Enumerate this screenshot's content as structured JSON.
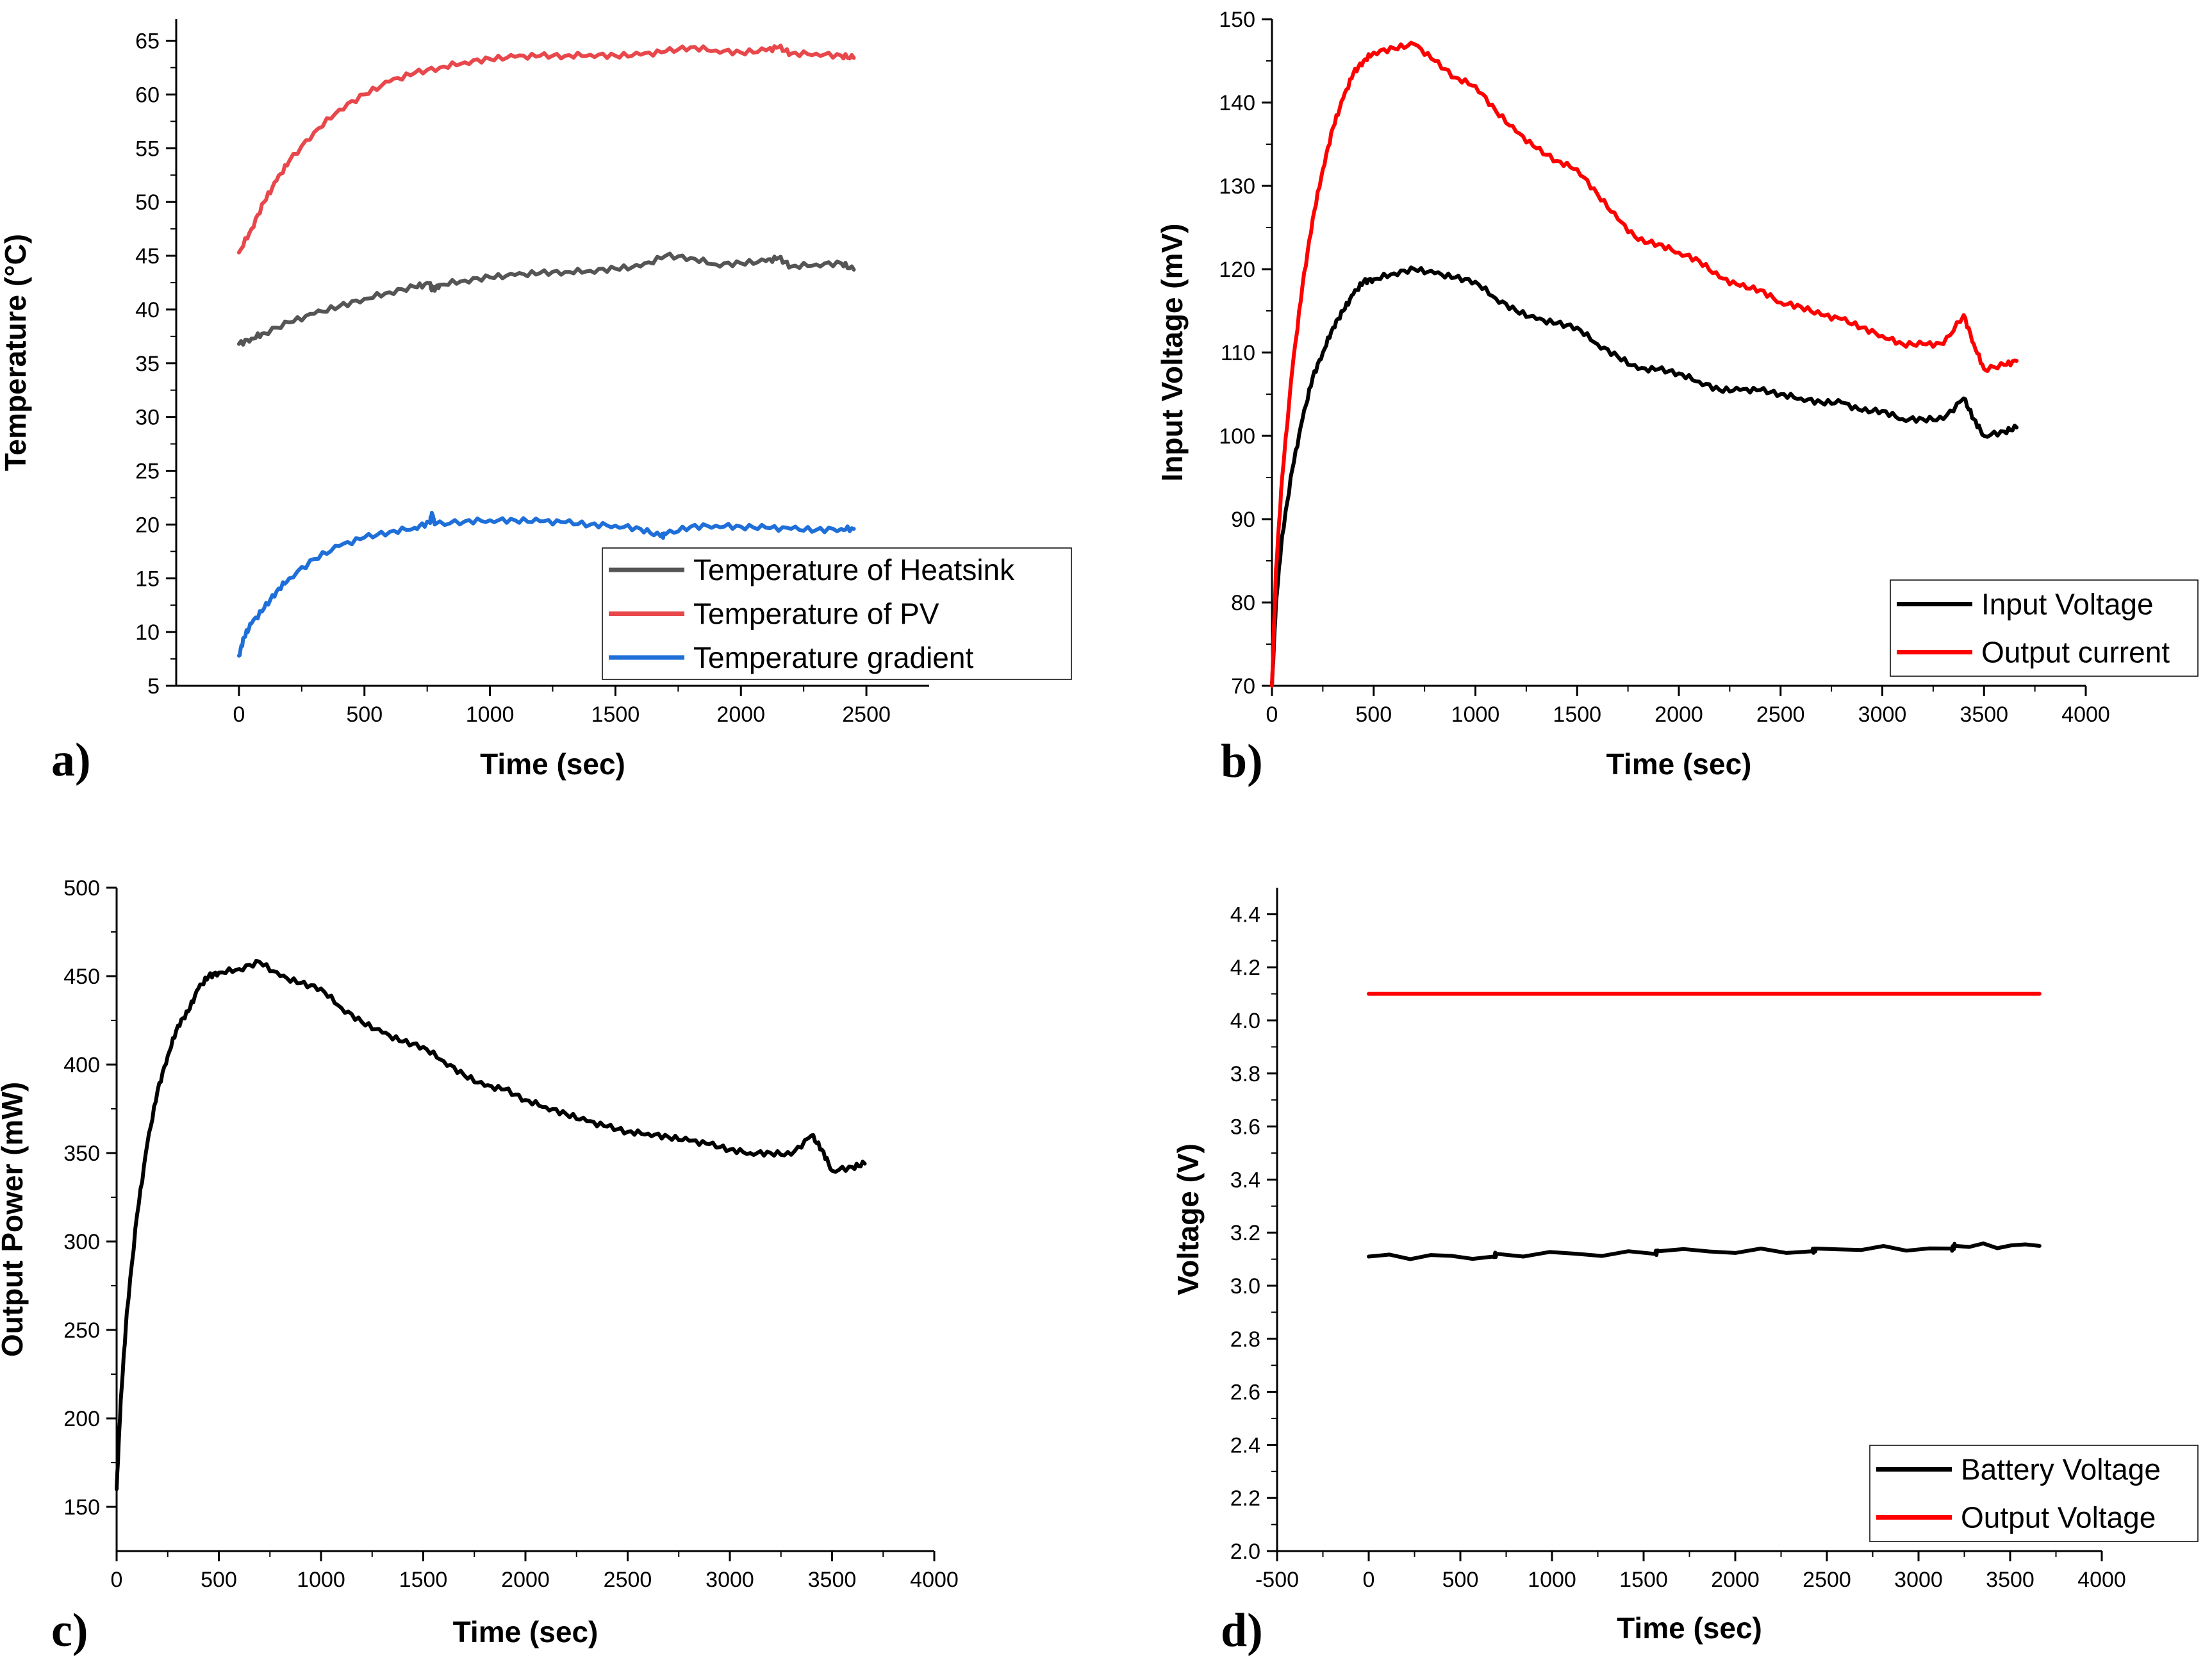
{
  "chart_data": [
    {
      "id": "a",
      "type": "line",
      "panel_label": "a)",
      "xlabel": "Time (sec)",
      "ylabel": "Temperature (°C)",
      "xlim": [
        -250,
        2750
      ],
      "ylim": [
        5,
        67
      ],
      "xticks": [
        0,
        500,
        1000,
        1500,
        2000,
        2500
      ],
      "yticks": [
        5,
        10,
        15,
        20,
        25,
        30,
        35,
        40,
        45,
        50,
        55,
        60,
        65
      ],
      "legend_position": "bottom-right",
      "series": [
        {
          "name": "Temperature of Heatsink",
          "color": "#555555",
          "points": [
            [
              0,
              36.8
            ],
            [
              50,
              37.3
            ],
            [
              100,
              37.8
            ],
            [
              200,
              38.8
            ],
            [
              300,
              39.6
            ],
            [
              400,
              40.3
            ],
            [
              500,
              41.0
            ],
            [
              600,
              41.6
            ],
            [
              700,
              42.1
            ],
            [
              760,
              42.4
            ],
            [
              770,
              41.8
            ],
            [
              800,
              42.3
            ],
            [
              900,
              42.7
            ],
            [
              1000,
              43.0
            ],
            [
              1100,
              43.2
            ],
            [
              1200,
              43.4
            ],
            [
              1300,
              43.5
            ],
            [
              1400,
              43.6
            ],
            [
              1500,
              43.8
            ],
            [
              1600,
              44.0
            ],
            [
              1700,
              45.0
            ],
            [
              1800,
              44.8
            ],
            [
              1900,
              44.2
            ],
            [
              2000,
              44.3
            ],
            [
              2100,
              44.5
            ],
            [
              2150,
              44.8
            ],
            [
              2200,
              44.0
            ],
            [
              2300,
              44.2
            ],
            [
              2400,
              44.3
            ],
            [
              2450,
              43.7
            ]
          ]
        },
        {
          "name": "Temperature of PV",
          "color": "#e8474b",
          "points": [
            [
              0,
              45.3
            ],
            [
              50,
              47.5
            ],
            [
              100,
              50.0
            ],
            [
              150,
              52.0
            ],
            [
              200,
              53.8
            ],
            [
              300,
              56.5
            ],
            [
              400,
              58.6
            ],
            [
              500,
              60.0
            ],
            [
              600,
              61.2
            ],
            [
              700,
              62.0
            ],
            [
              800,
              62.5
            ],
            [
              900,
              63.0
            ],
            [
              1000,
              63.3
            ],
            [
              1100,
              63.5
            ],
            [
              1200,
              63.6
            ],
            [
              1300,
              63.6
            ],
            [
              1400,
              63.7
            ],
            [
              1500,
              63.6
            ],
            [
              1600,
              63.7
            ],
            [
              1700,
              64.0
            ],
            [
              1800,
              64.4
            ],
            [
              1900,
              64.1
            ],
            [
              2000,
              63.9
            ],
            [
              2100,
              64.1
            ],
            [
              2150,
              64.4
            ],
            [
              2200,
              63.8
            ],
            [
              2300,
              63.8
            ],
            [
              2400,
              63.6
            ],
            [
              2450,
              63.4
            ]
          ]
        },
        {
          "name": "Temperature gradient",
          "color": "#1f6fd8",
          "points": [
            [
              0,
              7.8
            ],
            [
              20,
              9.5
            ],
            [
              50,
              10.8
            ],
            [
              100,
              12.2
            ],
            [
              150,
              13.8
            ],
            [
              200,
              15.0
            ],
            [
              300,
              16.8
            ],
            [
              400,
              18.0
            ],
            [
              500,
              18.8
            ],
            [
              600,
              19.3
            ],
            [
              700,
              19.7
            ],
            [
              760,
              20.2
            ],
            [
              770,
              21.0
            ],
            [
              780,
              20.0
            ],
            [
              900,
              20.3
            ],
            [
              1000,
              20.4
            ],
            [
              1100,
              20.4
            ],
            [
              1200,
              20.3
            ],
            [
              1300,
              20.2
            ],
            [
              1400,
              20.0
            ],
            [
              1500,
              19.9
            ],
            [
              1600,
              19.6
            ],
            [
              1680,
              18.9
            ],
            [
              1700,
              19.1
            ],
            [
              1800,
              19.8
            ],
            [
              1900,
              19.9
            ],
            [
              2000,
              19.8
            ],
            [
              2100,
              19.7
            ],
            [
              2200,
              19.6
            ],
            [
              2300,
              19.5
            ],
            [
              2400,
              19.6
            ],
            [
              2450,
              19.6
            ]
          ]
        }
      ]
    },
    {
      "id": "b",
      "type": "line",
      "panel_label": "b)",
      "xlabel": "Time (sec)",
      "ylabel": "Input Voltage (mV)",
      "xlim": [
        0,
        4000
      ],
      "ylim": [
        70,
        150
      ],
      "xticks": [
        0,
        500,
        1000,
        1500,
        2000,
        2500,
        3000,
        3500,
        4000
      ],
      "yticks": [
        70,
        80,
        90,
        100,
        110,
        120,
        130,
        140,
        150
      ],
      "legend_position": "bottom-right",
      "series": [
        {
          "name": "Input Voltage",
          "color": "#000000",
          "points": [
            [
              0,
              70
            ],
            [
              20,
              80
            ],
            [
              50,
              88
            ],
            [
              100,
              96
            ],
            [
              150,
              102
            ],
            [
              200,
              107
            ],
            [
              250,
              110
            ],
            [
              300,
              113
            ],
            [
              350,
              115
            ],
            [
              400,
              117
            ],
            [
              450,
              118.5
            ],
            [
              500,
              118.8
            ],
            [
              600,
              119.5
            ],
            [
              700,
              120
            ],
            [
              800,
              119.5
            ],
            [
              900,
              119
            ],
            [
              1000,
              118.5
            ],
            [
              1100,
              116.5
            ],
            [
              1200,
              115
            ],
            [
              1300,
              114
            ],
            [
              1400,
              113.5
            ],
            [
              1500,
              113
            ],
            [
              1600,
              111
            ],
            [
              1700,
              109.5
            ],
            [
              1800,
              108
            ],
            [
              1900,
              108
            ],
            [
              2000,
              107.5
            ],
            [
              2100,
              106.5
            ],
            [
              2200,
              105.5
            ],
            [
              2300,
              105.5
            ],
            [
              2400,
              105.5
            ],
            [
              2500,
              105
            ],
            [
              2600,
              104.5
            ],
            [
              2700,
              104
            ],
            [
              2800,
              104
            ],
            [
              2900,
              103
            ],
            [
              3000,
              103
            ],
            [
              3100,
              102
            ],
            [
              3200,
              102
            ],
            [
              3300,
              102
            ],
            [
              3400,
              104.5
            ],
            [
              3450,
              102
            ],
            [
              3500,
              100
            ],
            [
              3600,
              100.5
            ],
            [
              3660,
              101
            ]
          ]
        },
        {
          "name": "Output current",
          "color": "#ff0000",
          "points": [
            [
              0,
              70
            ],
            [
              20,
              84
            ],
            [
              50,
              95
            ],
            [
              100,
              108
            ],
            [
              150,
              118
            ],
            [
              200,
              126
            ],
            [
              250,
              132
            ],
            [
              300,
              137
            ],
            [
              350,
              140.5
            ],
            [
              400,
              143.5
            ],
            [
              450,
              145
            ],
            [
              500,
              146
            ],
            [
              600,
              146.5
            ],
            [
              700,
              147
            ],
            [
              800,
              145
            ],
            [
              900,
              143
            ],
            [
              1000,
              142
            ],
            [
              1100,
              139
            ],
            [
              1200,
              136.5
            ],
            [
              1300,
              134.5
            ],
            [
              1400,
              133
            ],
            [
              1500,
              132
            ],
            [
              1600,
              129
            ],
            [
              1700,
              126
            ],
            [
              1800,
              123.5
            ],
            [
              1900,
              123
            ],
            [
              2000,
              122
            ],
            [
              2100,
              121
            ],
            [
              2200,
              119
            ],
            [
              2300,
              118
            ],
            [
              2400,
              117.5
            ],
            [
              2500,
              116
            ],
            [
              2600,
              115.5
            ],
            [
              2700,
              114.5
            ],
            [
              2800,
              114
            ],
            [
              2900,
              113
            ],
            [
              3000,
              112
            ],
            [
              3100,
              111
            ],
            [
              3200,
              111
            ],
            [
              3300,
              111
            ],
            [
              3400,
              114.5
            ],
            [
              3450,
              111
            ],
            [
              3500,
              108
            ],
            [
              3600,
              108.5
            ],
            [
              3660,
              109
            ]
          ]
        }
      ]
    },
    {
      "id": "c",
      "type": "line",
      "panel_label": "c)",
      "xlabel": "Time (sec)",
      "ylabel": "Output Power (mW)",
      "xlim": [
        0,
        4000
      ],
      "ylim": [
        125,
        500
      ],
      "xticks": [
        0,
        500,
        1000,
        1500,
        2000,
        2500,
        3000,
        3500,
        4000
      ],
      "yticks": [
        150,
        200,
        250,
        300,
        350,
        400,
        450,
        500
      ],
      "legend_position": "none",
      "series": [
        {
          "name": "Output Power",
          "color": "#000000",
          "points": [
            [
              0,
              160
            ],
            [
              20,
              210
            ],
            [
              50,
              260
            ],
            [
              100,
              315
            ],
            [
              150,
              355
            ],
            [
              200,
              385
            ],
            [
              250,
              405
            ],
            [
              300,
              422
            ],
            [
              350,
              430
            ],
            [
              400,
              443
            ],
            [
              450,
              450
            ],
            [
              500,
              452
            ],
            [
              600,
              454
            ],
            [
              700,
              458
            ],
            [
              800,
              450
            ],
            [
              900,
              446
            ],
            [
              1000,
              443
            ],
            [
              1100,
              432
            ],
            [
              1200,
              424
            ],
            [
              1300,
              418
            ],
            [
              1400,
              413
            ],
            [
              1500,
              410
            ],
            [
              1600,
              402
            ],
            [
              1700,
              394
            ],
            [
              1800,
              388
            ],
            [
              1900,
              386
            ],
            [
              2000,
              380
            ],
            [
              2100,
              376
            ],
            [
              2200,
              372
            ],
            [
              2300,
              368
            ],
            [
              2400,
              365
            ],
            [
              2500,
              362
            ],
            [
              2600,
              361
            ],
            [
              2700,
              359
            ],
            [
              2800,
              357
            ],
            [
              2900,
              355
            ],
            [
              3000,
              352
            ],
            [
              3100,
              350
            ],
            [
              3200,
              350
            ],
            [
              3300,
              349
            ],
            [
              3400,
              360
            ],
            [
              3450,
              352
            ],
            [
              3500,
              340
            ],
            [
              3600,
              342
            ],
            [
              3660,
              344
            ]
          ]
        }
      ]
    },
    {
      "id": "d",
      "type": "line",
      "panel_label": "d)",
      "xlabel": "Time (sec)",
      "ylabel": "Voltage (V)",
      "xlim": [
        -500,
        4000
      ],
      "ylim": [
        2.0,
        4.5
      ],
      "xticks": [
        -500,
        0,
        500,
        1000,
        1500,
        2000,
        2500,
        3000,
        3500,
        4000
      ],
      "yticks": [
        2.0,
        2.2,
        2.4,
        2.6,
        2.8,
        3.0,
        3.2,
        3.4,
        3.6,
        3.8,
        4.0,
        4.2,
        4.4
      ],
      "legend_position": "bottom-right",
      "series": [
        {
          "name": "Battery Voltage",
          "color": "#000000",
          "points": [
            [
              0,
              3.11
            ],
            [
              680,
              3.11
            ],
            [
              700,
              3.12
            ],
            [
              1560,
              3.12
            ],
            [
              1580,
              3.13
            ],
            [
              2420,
              3.13
            ],
            [
              2440,
              3.14
            ],
            [
              3180,
              3.14
            ],
            [
              3200,
              3.15
            ],
            [
              3660,
              3.15
            ]
          ]
        },
        {
          "name": "Output Voltage",
          "color": "#ff0000",
          "points": [
            [
              0,
              4.1
            ],
            [
              3660,
              4.1
            ]
          ]
        }
      ]
    }
  ]
}
